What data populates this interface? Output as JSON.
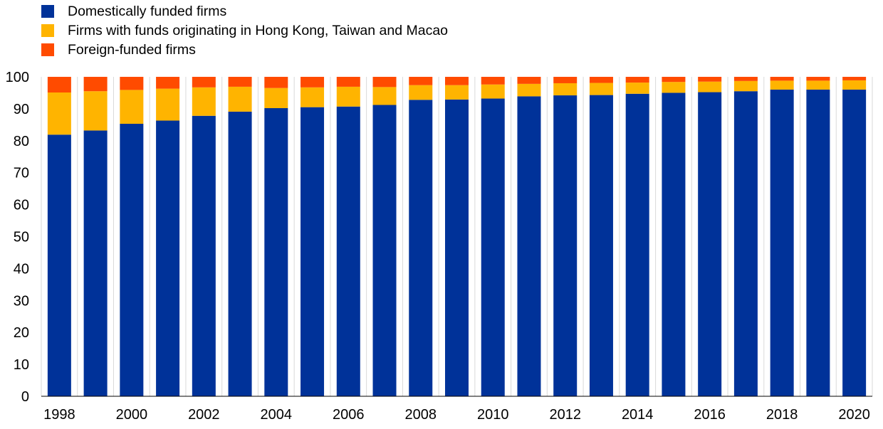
{
  "chart_data": {
    "type": "bar",
    "stacked": true,
    "categories": [
      "1998",
      "1999",
      "2000",
      "2001",
      "2002",
      "2003",
      "2004",
      "2005",
      "2006",
      "2007",
      "2008",
      "2009",
      "2010",
      "2011",
      "2012",
      "2013",
      "2014",
      "2015",
      "2016",
      "2017",
      "2018",
      "2019",
      "2020"
    ],
    "x_tick_labels": [
      "1998",
      "2000",
      "2002",
      "2004",
      "2006",
      "2008",
      "2010",
      "2012",
      "2014",
      "2016",
      "2018",
      "2020"
    ],
    "series": [
      {
        "name": "Domestically funded firms",
        "color": "#003299",
        "values": [
          81.9,
          83.2,
          85.3,
          86.3,
          87.8,
          89.1,
          90.2,
          90.5,
          90.7,
          91.2,
          92.8,
          92.9,
          93.2,
          93.9,
          94.2,
          94.3,
          94.7,
          95.0,
          95.2,
          95.5,
          96.0,
          96.0,
          96.0
        ]
      },
      {
        "name": "Firms with funds originating in Hong Kong, Taiwan and Macao",
        "color": "#FFB400",
        "values": [
          13.2,
          12.3,
          10.6,
          10.0,
          8.9,
          7.8,
          6.3,
          6.2,
          6.2,
          5.6,
          4.6,
          4.5,
          4.4,
          3.9,
          3.8,
          3.8,
          3.5,
          3.4,
          3.3,
          3.2,
          2.8,
          2.8,
          2.9
        ]
      },
      {
        "name": "Foreign-funded firms",
        "color": "#FF4B00",
        "values": [
          4.9,
          4.5,
          4.1,
          3.7,
          3.3,
          3.1,
          3.5,
          3.3,
          3.1,
          3.2,
          2.6,
          2.6,
          2.4,
          2.2,
          2.0,
          1.9,
          1.8,
          1.6,
          1.5,
          1.3,
          1.2,
          1.2,
          1.1
        ]
      }
    ],
    "y_ticks": [
      0,
      10,
      20,
      30,
      40,
      50,
      60,
      70,
      80,
      90,
      100
    ],
    "ylim": [
      0,
      100
    ],
    "title": "",
    "xlabel": "",
    "ylabel": "",
    "grid": {
      "vertical": true,
      "horizontal": false
    },
    "legend_position": "top-left"
  }
}
